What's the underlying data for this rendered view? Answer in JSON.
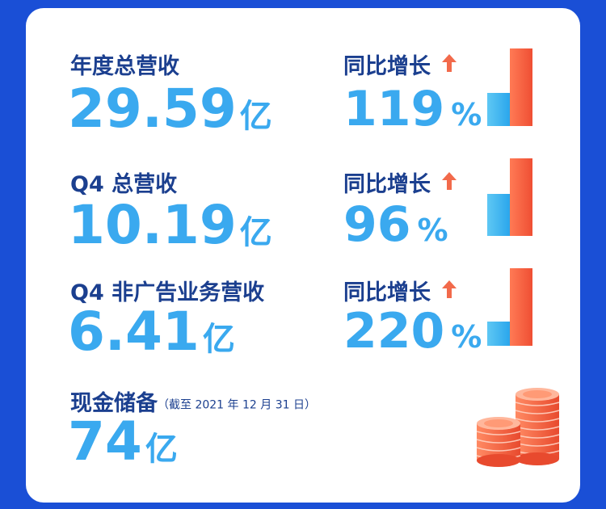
{
  "metrics": [
    {
      "label": "年度总营收",
      "value": "29.59",
      "unit": "亿",
      "growth_label": "同比增长",
      "growth_value": "119",
      "growth_unit": "%",
      "prev_bar_level": 0.43,
      "curr_bar_level": 1.0
    },
    {
      "label": "Q4 总营收",
      "value": "10.19",
      "unit": "亿",
      "growth_label": "同比增长",
      "growth_value": "96",
      "growth_unit": "%",
      "prev_bar_level": 0.54,
      "curr_bar_level": 1.0
    },
    {
      "label": "Q4 非广告业务营收",
      "value": "6.41",
      "unit": "亿",
      "growth_label": "同比增长",
      "growth_value": "220",
      "growth_unit": "%",
      "prev_bar_level": 0.31,
      "curr_bar_level": 1.0
    }
  ],
  "cash": {
    "label": "现金储备",
    "note": "（截至 2021 年 12 月 31 日）",
    "value": "74",
    "unit": "亿"
  },
  "colors": {
    "background": "#1a4fd6",
    "label": "#1b3f8f",
    "value": "#3aa9ef",
    "arrow": "#f26a4b",
    "bar_blue": "#2aa6ec",
    "bar_red": "#ef4f33"
  }
}
